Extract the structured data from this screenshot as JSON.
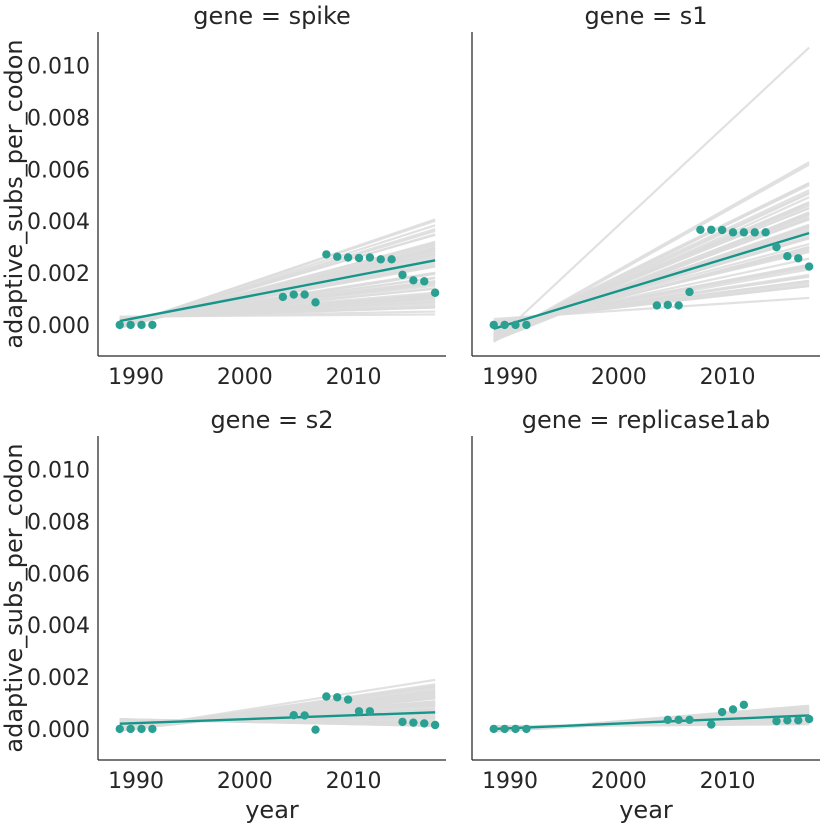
{
  "colors": {
    "fit_line": "#16968a",
    "points": "#2aa092",
    "bootstrap_lines": "#dcdcdc",
    "axis": "#262626",
    "background": "#ffffff"
  },
  "chart_data": [
    {
      "type": "scatter",
      "title": "gene = spike",
      "xlabel": "",
      "ylabel": "adaptive_subs_per_codon",
      "xlim": [
        1986.5,
        2018.5
      ],
      "ylim": [
        -0.0012,
        0.0113
      ],
      "xticks": [
        1990,
        2000,
        2010
      ],
      "yticks": [
        0.0,
        0.002,
        0.004,
        0.006,
        0.008,
        0.01
      ],
      "xtick_labels": [
        "1990",
        "2000",
        "2010"
      ],
      "ytick_labels": [
        "0.000",
        "0.002",
        "0.004",
        "0.006",
        "0.008",
        "0.010"
      ],
      "grid": false,
      "points": {
        "x": [
          1988.5,
          1989.5,
          1990.5,
          1991.5,
          2003.5,
          2004.5,
          2005.5,
          2006.5,
          2007.5,
          2008.5,
          2009.5,
          2010.5,
          2011.5,
          2012.5,
          2013.5,
          2014.5,
          2015.5,
          2016.5,
          2017.5
        ],
        "y": [
          0.0,
          0.0,
          0.0,
          0.0,
          0.00108,
          0.00117,
          0.00117,
          0.00087,
          0.00272,
          0.00263,
          0.0026,
          0.00258,
          0.0026,
          0.00253,
          0.00253,
          0.00193,
          0.00172,
          0.00168,
          0.00124
        ]
      },
      "regression": {
        "x": [
          1988.5,
          2017.5
        ],
        "y": [
          0.00015,
          0.00249
        ]
      },
      "bootstrap_endpoints": {
        "x": [
          1988.5,
          2017.5
        ],
        "start_range": [
          -0.00012,
          0.00032
        ],
        "end_range": [
          0.0004,
          0.0047
        ]
      }
    },
    {
      "type": "scatter",
      "title": "gene = s1",
      "xlabel": "",
      "ylabel": "",
      "xlim": [
        1986.5,
        2018.5
      ],
      "ylim": [
        -0.0012,
        0.0113
      ],
      "xticks": [
        1990,
        2000,
        2010
      ],
      "yticks": [
        0.0,
        0.002,
        0.004,
        0.006,
        0.008,
        0.01
      ],
      "xtick_labels": [
        "1990",
        "2000",
        "2010"
      ],
      "ytick_labels": [],
      "grid": false,
      "points": {
        "x": [
          1988.5,
          1989.5,
          1990.5,
          1991.5,
          2003.5,
          2004.5,
          2005.5,
          2006.5,
          2007.5,
          2008.5,
          2009.5,
          2010.5,
          2011.5,
          2012.5,
          2013.5,
          2014.5,
          2015.5,
          2016.5,
          2017.5
        ],
        "y": [
          0.0,
          0.0,
          0.0,
          0.0,
          0.00075,
          0.00077,
          0.00075,
          0.00127,
          0.00367,
          0.00367,
          0.00366,
          0.00357,
          0.00357,
          0.00357,
          0.00357,
          0.003,
          0.00265,
          0.00257,
          0.00225
        ]
      },
      "regression": {
        "x": [
          1988.5,
          2017.5
        ],
        "y": [
          -0.00015,
          0.00354
        ]
      },
      "bootstrap_endpoints": {
        "x": [
          1988.5,
          2017.5
        ],
        "start_range": [
          -0.00065,
          0.00025
        ],
        "end_range": [
          0.00095,
          0.0067
        ],
        "outlier_end": 0.0107
      }
    },
    {
      "type": "scatter",
      "title": "gene = s2",
      "xlabel": "year",
      "ylabel": "adaptive_subs_per_codon",
      "xlim": [
        1986.5,
        2018.5
      ],
      "ylim": [
        -0.0012,
        0.0113
      ],
      "xticks": [
        1990,
        2000,
        2010
      ],
      "yticks": [
        0.0,
        0.002,
        0.004,
        0.006,
        0.008,
        0.01
      ],
      "xtick_labels": [
        "1990",
        "2000",
        "2010"
      ],
      "ytick_labels": [
        "0.000",
        "0.002",
        "0.004",
        "0.006",
        "0.008",
        "0.010"
      ],
      "grid": false,
      "points": {
        "x": [
          1988.5,
          1989.5,
          1990.5,
          1991.5,
          2004.5,
          2005.5,
          2006.5,
          2007.5,
          2008.5,
          2009.5,
          2010.5,
          2011.5,
          2014.5,
          2015.5,
          2016.5,
          2017.5
        ],
        "y": [
          0.0,
          0.0,
          0.0,
          0.0,
          0.00053,
          0.00052,
          -3e-05,
          0.00125,
          0.00122,
          0.00113,
          0.00068,
          0.00068,
          0.00027,
          0.00024,
          0.00021,
          0.00015
        ]
      },
      "regression": {
        "x": [
          1988.5,
          2017.5
        ],
        "y": [
          0.0002,
          0.00064
        ]
      },
      "bootstrap_endpoints": {
        "x": [
          1988.5,
          2017.5
        ],
        "start_range": [
          -8e-05,
          0.00038
        ],
        "end_range": [
          0.0001,
          0.0021
        ]
      }
    },
    {
      "type": "scatter",
      "title": "gene = replicase1ab",
      "xlabel": "year",
      "ylabel": "",
      "xlim": [
        1986.5,
        2018.5
      ],
      "ylim": [
        -0.0012,
        0.0113
      ],
      "xticks": [
        1990,
        2000,
        2010
      ],
      "yticks": [
        0.0,
        0.002,
        0.004,
        0.006,
        0.008,
        0.01
      ],
      "xtick_labels": [
        "1990",
        "2000",
        "2010"
      ],
      "ytick_labels": [],
      "grid": false,
      "points": {
        "x": [
          1988.5,
          1989.5,
          1990.5,
          1991.5,
          2004.5,
          2005.5,
          2006.5,
          2008.5,
          2009.5,
          2010.5,
          2011.5,
          2014.5,
          2015.5,
          2016.5,
          2017.5
        ],
        "y": [
          0.0,
          0.0,
          0.0,
          0.0,
          0.00035,
          0.00035,
          0.00035,
          0.00017,
          0.00065,
          0.00075,
          0.00093,
          0.0003,
          0.00033,
          0.00033,
          0.00038
        ]
      },
      "regression": {
        "x": [
          1988.5,
          2017.5
        ],
        "y": [
          0.0,
          0.00052
        ]
      },
      "bootstrap_endpoints": {
        "x": [
          1988.5,
          2017.5
        ],
        "start_range": [
          -0.0001,
          0.0001
        ],
        "end_range": [
          0.00018,
          0.0009
        ]
      }
    }
  ]
}
